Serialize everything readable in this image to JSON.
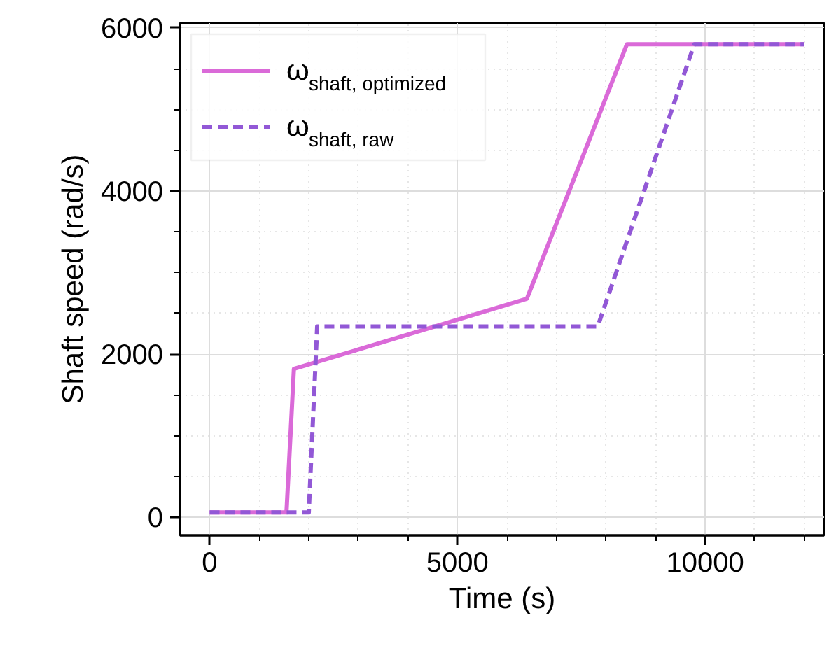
{
  "chart_data": {
    "type": "line",
    "xlabel": "Time (s)",
    "ylabel": "Shaft speed (rad/s)",
    "xlim": [
      -600,
      12400
    ],
    "ylim": [
      -220,
      6060
    ],
    "xticks": [
      0,
      5000,
      10000
    ],
    "yticks": [
      0,
      2000,
      4000,
      6000
    ],
    "grid": true,
    "legend": "top left",
    "series": [
      {
        "name": "ω$_{shaft, optimized}$",
        "color": "#da6ad8",
        "line_style": "solid",
        "x": [
          0,
          1550,
          1700,
          6400,
          8420,
          12000
        ],
        "values": [
          60,
          60,
          1820,
          2680,
          5800,
          5800
        ]
      },
      {
        "name": "ω$_{shaft, raw}$",
        "color": "#9258d6",
        "line_style": "dashed",
        "x": [
          0,
          2000,
          2170,
          7830,
          9780,
          12000
        ],
        "values": [
          60,
          60,
          2340,
          2340,
          5800,
          5800
        ]
      }
    ]
  }
}
